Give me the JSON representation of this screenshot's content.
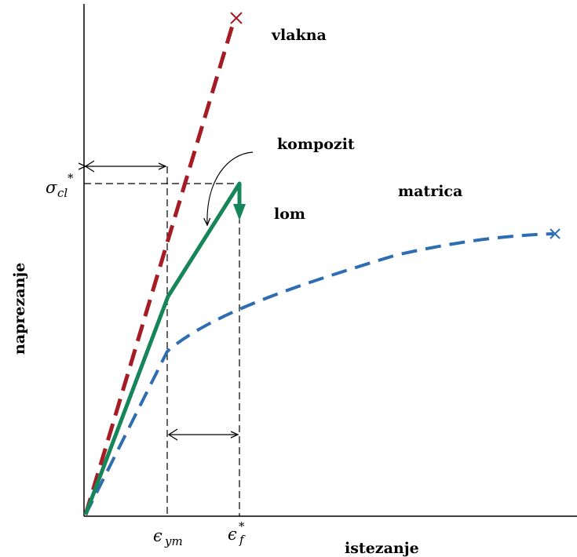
{
  "labels": {
    "fiber": "vlakna",
    "composite": "kompozit",
    "matrix": "matrica",
    "fracture": "lom",
    "x_axis": "istezanje",
    "y_axis": "naprezanje",
    "sigma_symbol": "σ",
    "sigma_sub": "cl",
    "sigma_sup": "*",
    "eps_ym_symbol": "ϵ",
    "eps_ym_sub": "ym",
    "eps_f_symbol": "ϵ",
    "eps_f_sub": "f",
    "eps_f_sup": "*"
  },
  "colors": {
    "fiber": "#a51c24",
    "composite": "#16855a",
    "matrix": "#2f6db3",
    "axis": "#000000"
  }
}
